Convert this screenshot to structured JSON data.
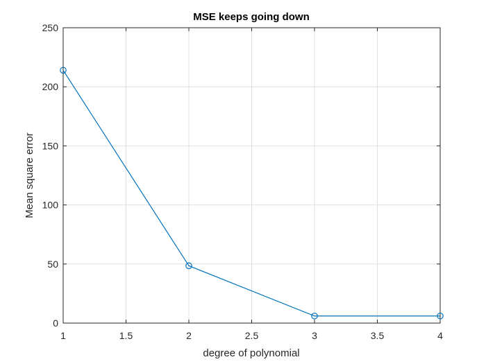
{
  "chart_data": {
    "type": "line",
    "title": "MSE keeps going down",
    "xlabel": "degree of polynomial",
    "ylabel": "Mean square error",
    "xlim": [
      1,
      4
    ],
    "ylim": [
      0,
      250
    ],
    "xticks": [
      1,
      1.5,
      2,
      2.5,
      3,
      3.5,
      4
    ],
    "xtick_labels": [
      "1",
      "1.5",
      "2",
      "2.5",
      "3",
      "3.5",
      "4"
    ],
    "yticks": [
      0,
      50,
      100,
      150,
      200,
      250
    ],
    "ytick_labels": [
      "0",
      "50",
      "100",
      "150",
      "200",
      "250"
    ],
    "grid": true,
    "marker": "circle",
    "colors": {
      "line": "#0072BD",
      "grid": "#dfdfdf",
      "axes": "#262626"
    },
    "series": [
      {
        "x": [
          1,
          2,
          3,
          4
        ],
        "values": [
          214,
          48.5,
          6,
          6
        ]
      }
    ]
  }
}
